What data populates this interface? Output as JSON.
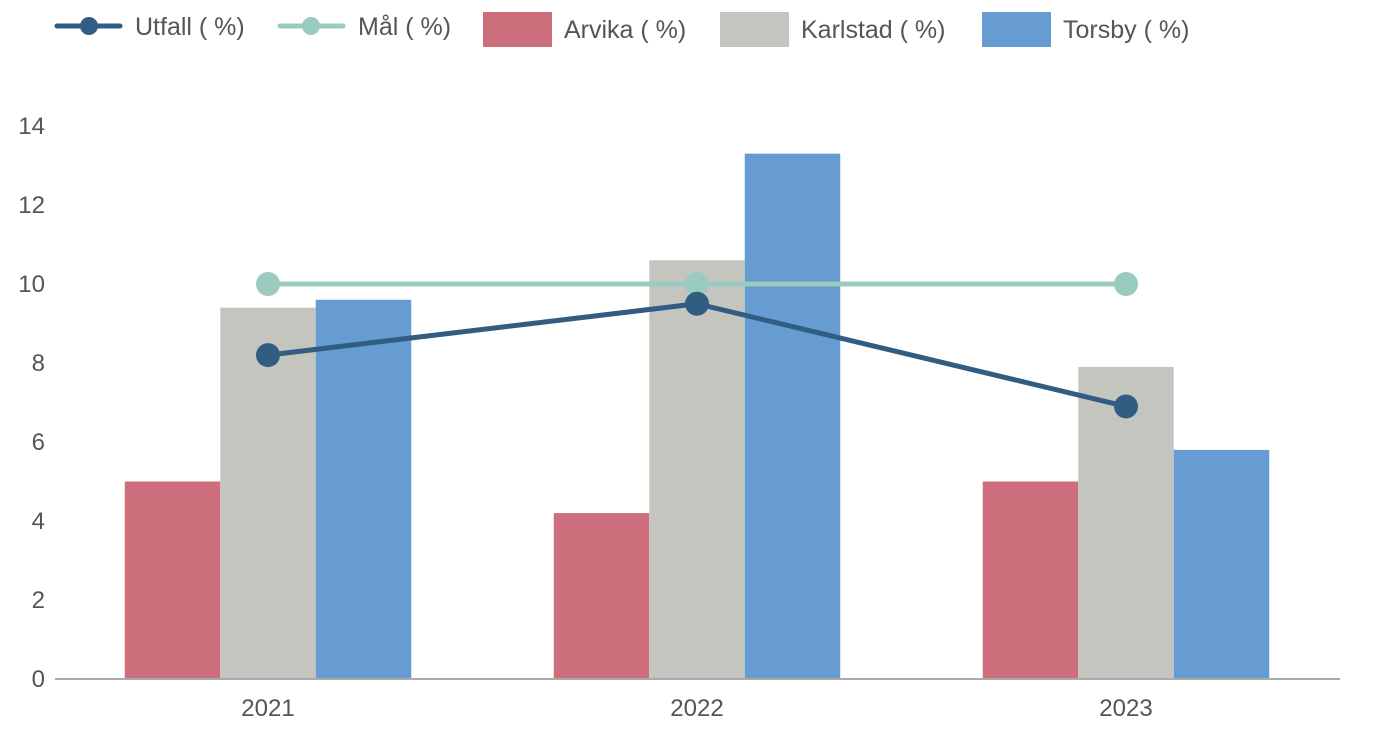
{
  "chart_data": {
    "type": "bar",
    "categories": [
      "2021",
      "2022",
      "2023"
    ],
    "ylim": [
      0,
      14
    ],
    "yticks": [
      0,
      2,
      4,
      6,
      8,
      10,
      12,
      14
    ],
    "grid": false,
    "legend_position": "top-left",
    "series": [
      {
        "name": "Arvika ( %)",
        "kind": "bar",
        "color": "#cc6e7c",
        "values": [
          5.0,
          4.2,
          5.0
        ]
      },
      {
        "name": "Karlstad ( %)",
        "kind": "bar",
        "color": "#c5c5c0",
        "values": [
          9.4,
          10.6,
          7.9
        ]
      },
      {
        "name": "Torsby ( %)",
        "kind": "bar",
        "color": "#679cd3",
        "values": [
          9.6,
          13.3,
          5.8
        ]
      },
      {
        "name": "Utfall ( %)",
        "kind": "line",
        "color": "#325d82",
        "values": [
          8.2,
          9.5,
          6.9
        ]
      },
      {
        "name": "Mål ( %)",
        "kind": "line",
        "color": "#9acbbe",
        "values": [
          10.0,
          10.0,
          10.0
        ]
      }
    ],
    "legend_order": [
      "Utfall ( %)",
      "Mål ( %)",
      "Arvika ( %)",
      "Karlstad ( %)",
      "Torsby ( %)"
    ]
  }
}
